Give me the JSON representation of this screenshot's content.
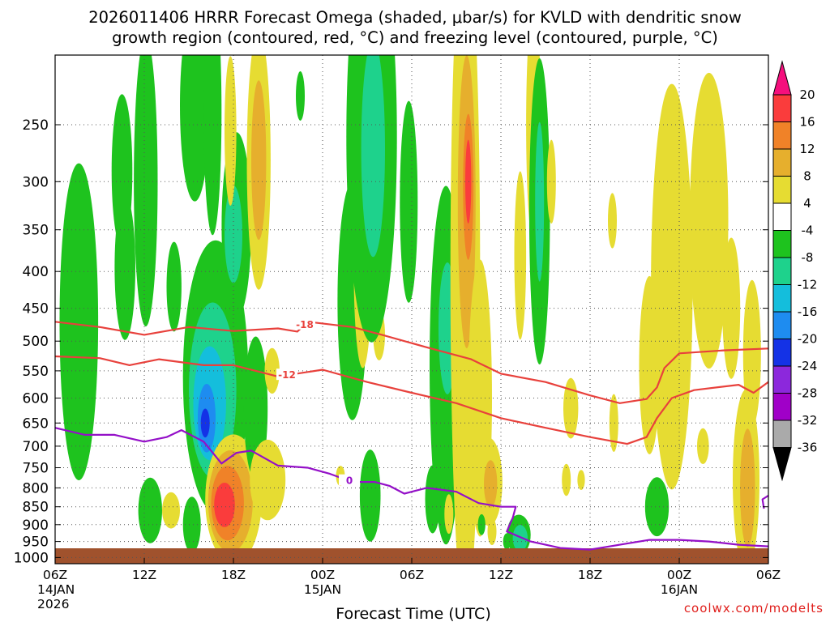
{
  "chart_data": {
    "type": "heatmap",
    "title_lines": [
      "2026011406 HRRR Forecast Omega (shaded, μbar/s) for KVLD with dendritic snow",
      "growth region (contoured, red, °C) and freezing level (contoured, purple, °C)"
    ],
    "xlabel": "Forecast Time (UTC)",
    "ylabel": "",
    "y_axis": {
      "scale": "log-pressure",
      "inverted": true,
      "range_hPa": [
        1020,
        200
      ],
      "ticks": [
        250,
        300,
        350,
        400,
        450,
        500,
        550,
        600,
        650,
        700,
        750,
        800,
        850,
        900,
        950,
        1000
      ]
    },
    "x_axis": {
      "range_hours": [
        0,
        48
      ],
      "ticks": [
        {
          "hour": 0,
          "lines": [
            "06Z",
            "14JAN",
            "2026"
          ]
        },
        {
          "hour": 6,
          "lines": [
            "12Z"
          ]
        },
        {
          "hour": 12,
          "lines": [
            "18Z"
          ]
        },
        {
          "hour": 18,
          "lines": [
            "00Z",
            "15JAN"
          ]
        },
        {
          "hour": 24,
          "lines": [
            "06Z"
          ]
        },
        {
          "hour": 30,
          "lines": [
            "12Z"
          ]
        },
        {
          "hour": 36,
          "lines": [
            "18Z"
          ]
        },
        {
          "hour": 42,
          "lines": [
            "00Z",
            "16JAN"
          ]
        },
        {
          "hour": 48,
          "lines": [
            "06Z"
          ]
        }
      ]
    },
    "grid": true,
    "colorbar": {
      "labels": [
        "20",
        "16",
        "12",
        "8",
        "4",
        "-4",
        "-8",
        "-12",
        "-16",
        "-20",
        "-24",
        "-28",
        "-32",
        "-36"
      ],
      "colors": [
        "#f50f7d",
        "#fa3c3c",
        "#f08228",
        "#e6af2d",
        "#e6dc32",
        "#ffffff",
        "#1ec31e",
        "#1ed28c",
        "#14bedc",
        "#1e8cf0",
        "#1432e6",
        "#8c28dc",
        "#a000c8",
        "#aaaaaa",
        "#000000"
      ],
      "top_arrow_color": "#f50f7d",
      "bottom_arrow_color": "#000000"
    },
    "omega_blobs": [
      {
        "x": 1.6,
        "p": 470,
        "wh": 1.3,
        "hp": 220,
        "level": -6
      },
      {
        "x": 4.5,
        "p": 290,
        "wh": 0.7,
        "hp": 70,
        "level": -6
      },
      {
        "x": 4.7,
        "p": 395,
        "wh": 0.7,
        "hp": 90,
        "level": -6
      },
      {
        "x": 6.1,
        "p": 300,
        "wh": 0.8,
        "hp": 130,
        "level": -6
      },
      {
        "x": 6.4,
        "p": 860,
        "wh": 0.8,
        "hp": 90,
        "level": -6
      },
      {
        "x": 7.8,
        "p": 860,
        "wh": 0.6,
        "hp": 50,
        "level": 6
      },
      {
        "x": 8.0,
        "p": 420,
        "wh": 0.5,
        "hp": 60,
        "level": -6
      },
      {
        "x": 9.2,
        "p": 900,
        "wh": 0.6,
        "hp": 80,
        "level": -6
      },
      {
        "x": 9.4,
        "p": 235,
        "wh": 1.0,
        "hp": 70,
        "level": -6
      },
      {
        "x": 9.7,
        "p": 605,
        "wh": 0.7,
        "hp": 150,
        "level": 6
      },
      {
        "x": 10.8,
        "p": 560,
        "wh": 2.2,
        "hp": 230,
        "level": -6
      },
      {
        "x": 10.6,
        "p": 585,
        "wh": 1.6,
        "hp": 160,
        "level": -10
      },
      {
        "x": 10.4,
        "p": 610,
        "wh": 1.1,
        "hp": 110,
        "level": -14
      },
      {
        "x": 10.2,
        "p": 640,
        "wh": 0.6,
        "hp": 70,
        "level": -18
      },
      {
        "x": 10.1,
        "p": 650,
        "wh": 0.3,
        "hp": 30,
        "level": -22
      },
      {
        "x": 10.6,
        "p": 240,
        "wh": 0.6,
        "hp": 90,
        "level": -6
      },
      {
        "x": 12.2,
        "p": 345,
        "wh": 1.0,
        "hp": 100,
        "level": -6
      },
      {
        "x": 12.0,
        "p": 355,
        "wh": 0.6,
        "hp": 55,
        "level": -10
      },
      {
        "x": 11.8,
        "p": 255,
        "wh": 0.4,
        "hp": 60,
        "level": 6
      },
      {
        "x": 12.0,
        "p": 830,
        "wh": 1.9,
        "hp": 170,
        "level": 6
      },
      {
        "x": 11.8,
        "p": 835,
        "wh": 1.5,
        "hp": 135,
        "level": 10
      },
      {
        "x": 11.6,
        "p": 840,
        "wh": 1.1,
        "hp": 100,
        "level": 14
      },
      {
        "x": 11.4,
        "p": 845,
        "wh": 0.7,
        "hp": 60,
        "level": 18
      },
      {
        "x": 13.7,
        "p": 280,
        "wh": 0.8,
        "hp": 110,
        "level": 6
      },
      {
        "x": 13.7,
        "p": 280,
        "wh": 0.5,
        "hp": 70,
        "level": 10
      },
      {
        "x": 13.5,
        "p": 620,
        "wh": 0.8,
        "hp": 140,
        "level": -6
      },
      {
        "x": 14.3,
        "p": 780,
        "wh": 1.2,
        "hp": 100,
        "level": 6
      },
      {
        "x": 14.6,
        "p": 550,
        "wh": 0.5,
        "hp": 40,
        "level": 6
      },
      {
        "x": 16.5,
        "p": 228,
        "wh": 0.3,
        "hp": 18,
        "level": -6
      },
      {
        "x": 19.2,
        "p": 770,
        "wh": 0.3,
        "hp": 25,
        "level": 6
      },
      {
        "x": 20.0,
        "p": 440,
        "wh": 1.0,
        "hp": 160,
        "level": -6
      },
      {
        "x": 20.7,
        "p": 400,
        "wh": 0.6,
        "hp": 120,
        "level": 6
      },
      {
        "x": 21.2,
        "p": 820,
        "wh": 0.7,
        "hp": 120,
        "level": -6
      },
      {
        "x": 21.8,
        "p": 490,
        "wh": 0.4,
        "hp": 40,
        "level": 6
      },
      {
        "x": 21.3,
        "p": 260,
        "wh": 1.7,
        "hp": 150,
        "level": -6
      },
      {
        "x": 21.4,
        "p": 270,
        "wh": 0.8,
        "hp": 90,
        "level": -10
      },
      {
        "x": 21.8,
        "p": 420,
        "wh": 0.3,
        "hp": 35,
        "level": -6
      },
      {
        "x": 23.8,
        "p": 320,
        "wh": 0.6,
        "hp": 100,
        "level": -6
      },
      {
        "x": 26.3,
        "p": 420,
        "wh": 0.5,
        "hp": 60,
        "level": 6
      },
      {
        "x": 26.3,
        "p": 540,
        "wh": 1.1,
        "hp": 280,
        "level": -6
      },
      {
        "x": 26.4,
        "p": 480,
        "wh": 0.6,
        "hp": 100,
        "level": -10
      },
      {
        "x": 27.1,
        "p": 300,
        "wh": 0.4,
        "hp": 50,
        "level": 6
      },
      {
        "x": 27.6,
        "p": 400,
        "wh": 1.0,
        "hp": 320,
        "level": 6
      },
      {
        "x": 27.7,
        "p": 320,
        "wh": 0.6,
        "hp": 140,
        "level": 10
      },
      {
        "x": 27.8,
        "p": 305,
        "wh": 0.35,
        "hp": 70,
        "level": 14
      },
      {
        "x": 27.8,
        "p": 300,
        "wh": 0.2,
        "hp": 40,
        "level": 18
      },
      {
        "x": 25.4,
        "p": 830,
        "wh": 0.5,
        "hp": 90,
        "level": -6
      },
      {
        "x": 26.5,
        "p": 870,
        "wh": 0.3,
        "hp": 55,
        "level": 6
      },
      {
        "x": 28.6,
        "p": 600,
        "wh": 0.8,
        "hp": 250,
        "level": 6
      },
      {
        "x": 29.2,
        "p": 785,
        "wh": 0.9,
        "hp": 110,
        "level": 6
      },
      {
        "x": 29.3,
        "p": 790,
        "wh": 0.45,
        "hp": 60,
        "level": 10
      },
      {
        "x": 29.4,
        "p": 920,
        "wh": 0.3,
        "hp": 40,
        "level": 6
      },
      {
        "x": 31.2,
        "p": 930,
        "wh": 0.8,
        "hp": 60,
        "level": -6
      },
      {
        "x": 31.3,
        "p": 940,
        "wh": 0.5,
        "hp": 40,
        "level": -10
      },
      {
        "x": 30.4,
        "p": 950,
        "wh": 0.25,
        "hp": 25,
        "level": -6
      },
      {
        "x": 28.7,
        "p": 900,
        "wh": 0.25,
        "hp": 30,
        "level": -6
      },
      {
        "x": 31.3,
        "p": 380,
        "wh": 0.4,
        "hp": 100,
        "level": 6
      },
      {
        "x": 32.2,
        "p": 250,
        "wh": 0.5,
        "hp": 90,
        "level": 6
      },
      {
        "x": 32.6,
        "p": 330,
        "wh": 0.7,
        "hp": 150,
        "level": -6
      },
      {
        "x": 32.6,
        "p": 320,
        "wh": 0.3,
        "hp": 80,
        "level": -10
      },
      {
        "x": 33.4,
        "p": 300,
        "wh": 0.3,
        "hp": 40,
        "level": 6
      },
      {
        "x": 34.7,
        "p": 620,
        "wh": 0.5,
        "hp": 60,
        "level": 6
      },
      {
        "x": 34.4,
        "p": 780,
        "wh": 0.3,
        "hp": 40,
        "level": 6
      },
      {
        "x": 35.4,
        "p": 780,
        "wh": 0.25,
        "hp": 25,
        "level": 6
      },
      {
        "x": 37.5,
        "p": 340,
        "wh": 0.3,
        "hp": 30,
        "level": 6
      },
      {
        "x": 37.6,
        "p": 650,
        "wh": 0.3,
        "hp": 60,
        "level": 6
      },
      {
        "x": 40.0,
        "p": 540,
        "wh": 0.7,
        "hp": 150,
        "level": 6
      },
      {
        "x": 41.5,
        "p": 420,
        "wh": 1.4,
        "hp": 240,
        "level": 6
      },
      {
        "x": 44.0,
        "p": 340,
        "wh": 1.3,
        "hp": 150,
        "level": 6
      },
      {
        "x": 45.5,
        "p": 450,
        "wh": 0.6,
        "hp": 100,
        "level": 6
      },
      {
        "x": 46.9,
        "p": 520,
        "wh": 0.6,
        "hp": 120,
        "level": 6
      },
      {
        "x": 43.6,
        "p": 700,
        "wh": 0.4,
        "hp": 40,
        "level": 6
      },
      {
        "x": 46.5,
        "p": 780,
        "wh": 0.9,
        "hp": 220,
        "level": 6
      },
      {
        "x": 46.6,
        "p": 800,
        "wh": 0.5,
        "hp": 150,
        "level": 10
      },
      {
        "x": 40.5,
        "p": 850,
        "wh": 0.8,
        "hp": 80,
        "level": -6
      }
    ],
    "dgz_contours": [
      {
        "label": "-18",
        "label_hour": 16.8,
        "points": [
          [
            0,
            470
          ],
          [
            3,
            478
          ],
          [
            6,
            490
          ],
          [
            9,
            478
          ],
          [
            12,
            484
          ],
          [
            15,
            480
          ],
          [
            16.3,
            485
          ],
          [
            17,
            470
          ],
          [
            20,
            478
          ],
          [
            22,
            490
          ],
          [
            25,
            510
          ],
          [
            28,
            530
          ],
          [
            30,
            555
          ],
          [
            33,
            570
          ],
          [
            36,
            595
          ],
          [
            38,
            610
          ],
          [
            39.8,
            602
          ],
          [
            40.5,
            580
          ],
          [
            41,
            545
          ],
          [
            42,
            520
          ],
          [
            45,
            515
          ],
          [
            48,
            512
          ]
        ]
      },
      {
        "label": "-12",
        "label_hour": 15.6,
        "points": [
          [
            0,
            525
          ],
          [
            3,
            528
          ],
          [
            5,
            540
          ],
          [
            7,
            530
          ],
          [
            10,
            540
          ],
          [
            12,
            540
          ],
          [
            15,
            560
          ],
          [
            18,
            548
          ],
          [
            21,
            570
          ],
          [
            24,
            590
          ],
          [
            27,
            610
          ],
          [
            30,
            640
          ],
          [
            33,
            660
          ],
          [
            36,
            680
          ],
          [
            38.5,
            695
          ],
          [
            39.8,
            680
          ],
          [
            40.5,
            640
          ],
          [
            41.5,
            600
          ],
          [
            43,
            585
          ],
          [
            46,
            575
          ],
          [
            47,
            590
          ],
          [
            48,
            570
          ]
        ]
      }
    ],
    "freezing_contours": [
      {
        "label": "0",
        "label_hour": 19.8,
        "points": [
          [
            0,
            660
          ],
          [
            2,
            675
          ],
          [
            4,
            675
          ],
          [
            6,
            690
          ],
          [
            7.5,
            680
          ],
          [
            8.5,
            665
          ],
          [
            10,
            690
          ],
          [
            11.2,
            740
          ],
          [
            12.2,
            715
          ],
          [
            13.2,
            710
          ],
          [
            15,
            745
          ],
          [
            17,
            750
          ],
          [
            18.5,
            765
          ],
          [
            20,
            785
          ],
          [
            21.5,
            785
          ],
          [
            22.5,
            795
          ],
          [
            23.5,
            815
          ],
          [
            25,
            800
          ],
          [
            27,
            810
          ],
          [
            28.5,
            840
          ],
          [
            30,
            850
          ],
          [
            31,
            850
          ],
          [
            30.8,
            880
          ],
          [
            30.4,
            920
          ],
          [
            32,
            950
          ],
          [
            34,
            970
          ],
          [
            36,
            975
          ],
          [
            38,
            960
          ],
          [
            40,
            945
          ],
          [
            42,
            945
          ],
          [
            44,
            950
          ],
          [
            46,
            960
          ],
          [
            48,
            965
          ]
        ]
      },
      {
        "points": [
          [
            47.7,
            855
          ],
          [
            47.6,
            830
          ],
          [
            48,
            820
          ]
        ]
      }
    ],
    "credit": "coolwx.com/modelts"
  }
}
